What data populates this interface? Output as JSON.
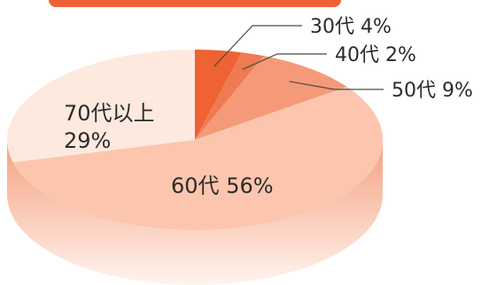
{
  "chart_data": {
    "type": "pie",
    "title": "",
    "slices": [
      {
        "label": "30代",
        "percent_text": "4%",
        "value": 4,
        "color": "#ee6233"
      },
      {
        "label": "40代",
        "percent_text": "2%",
        "value": 2,
        "color": "#f07a52"
      },
      {
        "label": "50代",
        "percent_text": "9%",
        "value": 9,
        "color": "#f59a78"
      },
      {
        "label": "60代",
        "percent_text": "56%",
        "value": 56,
        "color": "#fbc6ad"
      },
      {
        "label": "70代以上",
        "percent_text": "29%",
        "value": 29,
        "color": "#fde9de"
      }
    ],
    "colors": {
      "banner": "#ee6233",
      "side_shade": "#f7b497",
      "text": "#2b2b2b"
    }
  }
}
